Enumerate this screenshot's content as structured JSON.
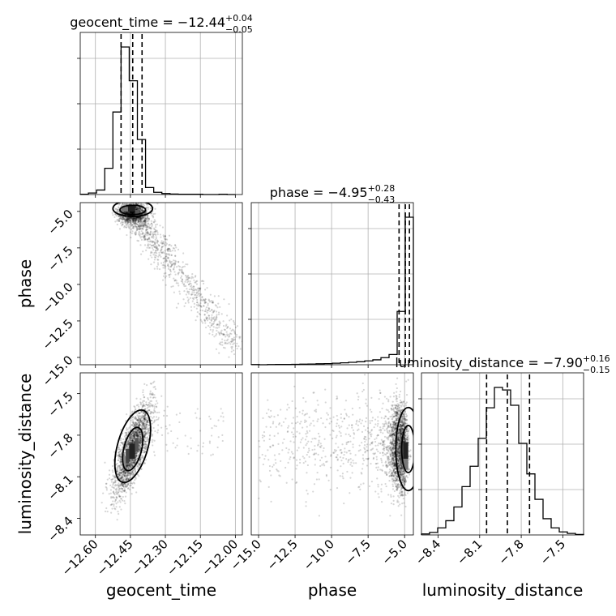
{
  "chart_data": {
    "type": "corner",
    "parameters": [
      {
        "name": "geocent_time",
        "axis_label": "geocent_time",
        "title_main": "geocent_time = −12.44",
        "title_sup": "+0.04",
        "title_sub": "−0.05",
        "range": [
          -12.665,
          -11.97
        ],
        "ticks": [
          -12.6,
          -12.45,
          -12.3,
          -12.15,
          -12.0
        ],
        "tick_labels": [
          "−12.60",
          "−12.45",
          "−12.30",
          "−12.15",
          "−12.00"
        ],
        "quantiles": [
          -12.49,
          -12.44,
          -12.4
        ],
        "hist_edges": [
          -12.665,
          -12.63,
          -12.595,
          -12.56,
          -12.525,
          -12.49,
          -12.455,
          -12.42,
          -12.385,
          -12.35,
          -12.315,
          -12.28,
          -12.245,
          -12.21,
          -12.175,
          -12.14,
          -12.105,
          -12.07,
          -12.035,
          -12.0
        ],
        "hist_counts": [
          1,
          6,
          18,
          105,
          330,
          590,
          455,
          220,
          28,
          9,
          4,
          2,
          1,
          1,
          1,
          0,
          0,
          1,
          0
        ]
      },
      {
        "name": "phase",
        "axis_label": "phase",
        "title_main": "phase = −4.95",
        "title_sup": "+0.28",
        "title_sub": "−0.43",
        "range": [
          -15.5,
          -4.4
        ],
        "ticks": [
          -15.0,
          -12.5,
          -10.0,
          -7.5,
          -5.0
        ],
        "tick_labels": [
          "−15.0",
          "−12.5",
          "−10.0",
          "−7.5",
          "−5.0"
        ],
        "quantiles": [
          -5.38,
          -4.95,
          -4.67
        ],
        "hist_edges": [
          -15.5,
          -14.945,
          -14.39,
          -13.835,
          -13.28,
          -12.725,
          -12.17,
          -11.615,
          -11.06,
          -10.505,
          -9.95,
          -9.395,
          -8.84,
          -8.285,
          -7.73,
          -7.175,
          -6.62,
          -6.065,
          -5.51,
          -4.955,
          -4.4
        ],
        "hist_counts": [
          1,
          0,
          1,
          2,
          2,
          3,
          4,
          5,
          7,
          8,
          11,
          14,
          18,
          22,
          28,
          36,
          52,
          75,
          390,
          1080
        ]
      },
      {
        "name": "luminosity_distance",
        "axis_label": "luminosity_distance",
        "title_main": "luminosity_distance = −7.90",
        "title_sup": "+0.16",
        "title_sub": "−0.15",
        "range": [
          -8.52,
          -7.35
        ],
        "ticks": [
          -8.4,
          -8.1,
          -7.8,
          -7.5
        ],
        "tick_labels": [
          "−8.4",
          "−8.1",
          "−7.8",
          "−7.5"
        ],
        "quantiles": [
          -8.05,
          -7.9,
          -7.74
        ],
        "hist_edges": [
          -8.52,
          -8.4615,
          -8.403,
          -8.3445,
          -8.286,
          -8.2275,
          -8.169,
          -8.1105,
          -8.052,
          -7.9935,
          -7.935,
          -7.8765,
          -7.818,
          -7.7595,
          -7.701,
          -7.6425,
          -7.584,
          -7.5255,
          -7.467,
          -7.4085,
          -7.35
        ],
        "hist_counts": [
          2,
          5,
          14,
          28,
          55,
          95,
          135,
          190,
          250,
          290,
          285,
          255,
          180,
          120,
          70,
          32,
          14,
          6,
          3,
          1
        ]
      }
    ],
    "joint": [
      {
        "x": "geocent_time",
        "y": "phase",
        "mode": [
          -12.44,
          -4.95
        ],
        "trend": "negative",
        "scatter_tail": {
          "x_end": -12.0,
          "y_end": -14.5
        }
      },
      {
        "x": "geocent_time",
        "y": "luminosity_distance",
        "mode": [
          -12.44,
          -7.9
        ],
        "trend": "positive"
      },
      {
        "x": "phase",
        "y": "luminosity_distance",
        "mode": [
          -4.95,
          -7.9
        ],
        "trend": "weak"
      }
    ],
    "contour_levels": [
      "inner",
      "outer"
    ],
    "grid": true,
    "colors": {
      "hist": "#000000",
      "quantile_line": "#000000",
      "points": "#000000",
      "grid": "#b0b0b0"
    }
  }
}
